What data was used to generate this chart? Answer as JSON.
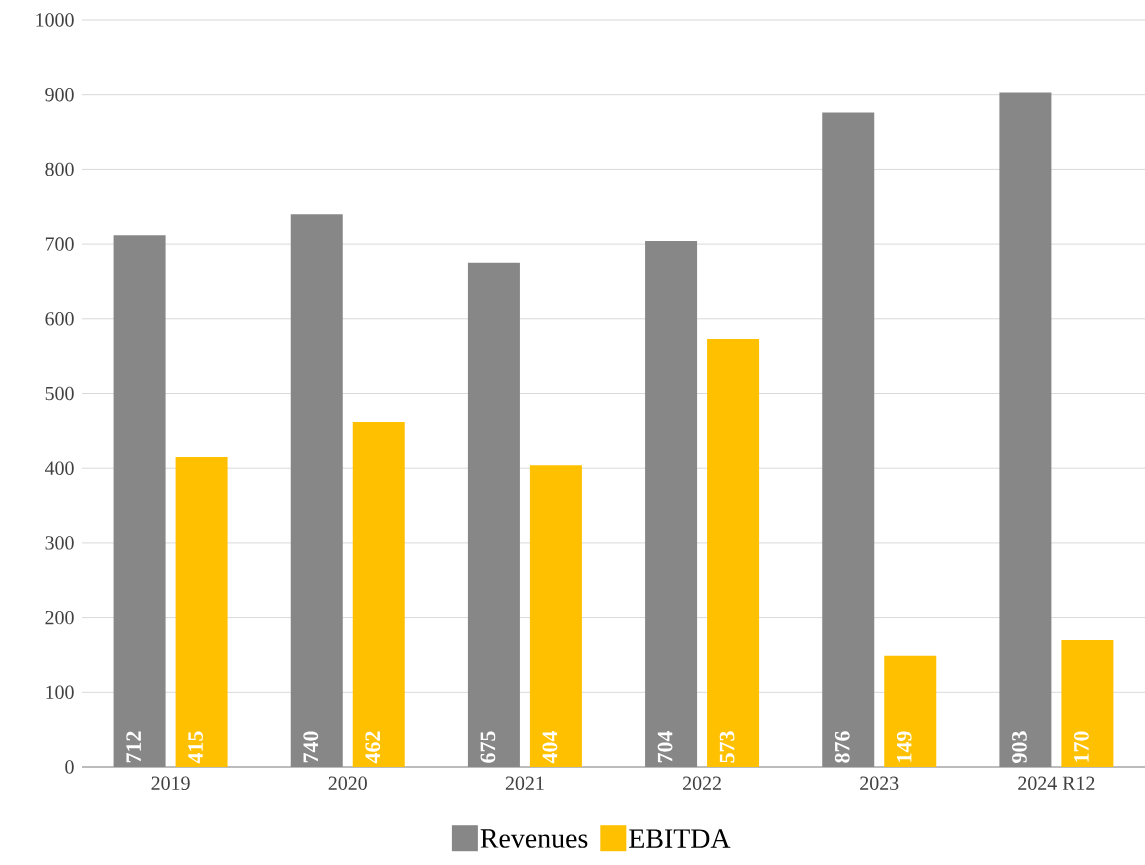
{
  "chart_data": {
    "type": "bar",
    "categories": [
      "2019",
      "2020",
      "2021",
      "2022",
      "2023",
      "2024 R12"
    ],
    "series": [
      {
        "name": "Revenues",
        "color": "#878787",
        "values": [
          712,
          740,
          675,
          704,
          876,
          903
        ]
      },
      {
        "name": "EBITDA",
        "color": "#ffc000",
        "values": [
          415,
          462,
          404,
          573,
          149,
          170
        ]
      }
    ],
    "ylim": [
      0,
      1000
    ],
    "yticks": [
      0,
      100,
      200,
      300,
      400,
      500,
      600,
      700,
      800,
      900,
      1000
    ],
    "grid": "y",
    "legend": "bottom",
    "data_labels": true
  }
}
